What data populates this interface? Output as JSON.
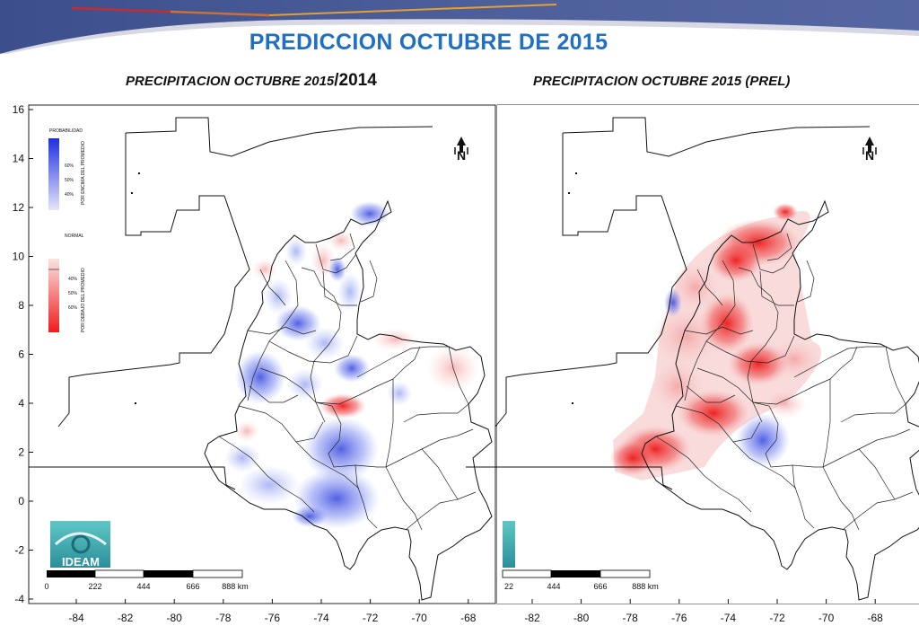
{
  "slide_title": "PREDICCION OCTUBRE DE 2015",
  "panels": [
    {
      "title": "PRECIPITACION OCTUBRE 2015",
      "title_suffix": "/2014"
    },
    {
      "title": "PRECIPITACION OCTUBRE 2015 (PREL)",
      "title_suffix": ""
    }
  ],
  "axes": {
    "y_ticks": [
      "16",
      "14",
      "12",
      "10",
      "8",
      "6",
      "4",
      "2",
      "0",
      "-2",
      "-4"
    ],
    "x_ticks_left": [
      "-84",
      "-82",
      "-80",
      "-78",
      "-76",
      "-74",
      "-72",
      "-70",
      "-68"
    ],
    "x_ticks_right": [
      "-82",
      "-80",
      "-78",
      "-76",
      "-74",
      "-72",
      "-70",
      "-68"
    ]
  },
  "legend": {
    "probability_title": "PROBABILIDAD",
    "above_levels": [
      "60%",
      "50%",
      "40%"
    ],
    "above_label": "POR ENCIMA DEL PROMEDIO",
    "normal_title": "NORMAL",
    "below_levels": [
      "40%",
      "50%",
      "60%"
    ],
    "below_label": "POR DEBAJO DEL PROMEDIO",
    "above_color": "#1f2fe0",
    "below_color": "#ee1c1c"
  },
  "logo_text": "IDEAM",
  "north_label": "N",
  "scale_bar_left": [
    "0",
    "222",
    "444",
    "666",
    "888 km"
  ],
  "scale_bar_right": [
    "22",
    "444",
    "666",
    "888 km"
  ]
}
